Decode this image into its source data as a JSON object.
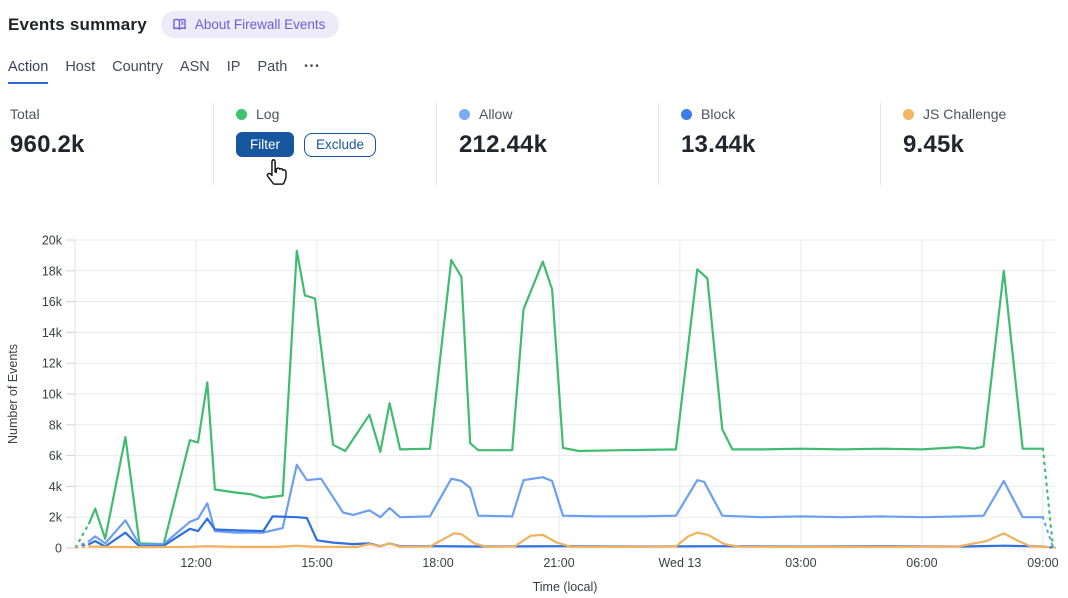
{
  "header": {
    "title": "Events summary",
    "about_badge": {
      "label": "About Firewall Events",
      "icon": "book-icon",
      "text_color": "#6b5ed8",
      "bg_color": "#edebf9"
    }
  },
  "tabs": {
    "items": [
      {
        "label": "Action",
        "active": true
      },
      {
        "label": "Host",
        "active": false
      },
      {
        "label": "Country",
        "active": false
      },
      {
        "label": "ASN",
        "active": false
      },
      {
        "label": "IP",
        "active": false
      },
      {
        "label": "Path",
        "active": false
      }
    ],
    "more": "•••",
    "active_underline_color": "#2e65d9"
  },
  "stats": {
    "total": {
      "label": "Total",
      "value": "960.2k"
    },
    "log": {
      "label": "Log",
      "color": "#3ec46f",
      "filter_label": "Filter",
      "exclude_label": "Exclude",
      "button_color": "#16569e"
    },
    "allow": {
      "label": "Allow",
      "value": "212.44k",
      "color": "#7aabf5"
    },
    "block": {
      "label": "Block",
      "value": "13.44k",
      "color": "#3b7de8"
    },
    "js_challenge": {
      "label": "JS Challenge",
      "value": "9.45k",
      "color": "#f2b661"
    }
  },
  "chart_data": {
    "type": "line",
    "title": "",
    "xlabel": "Time (local)",
    "ylabel": "Number of Events",
    "grid": true,
    "legend_position": "top-cards",
    "y_axis": {
      "max": 20,
      "unit": "k",
      "ticks": [
        {
          "v": 0,
          "label": "0"
        },
        {
          "v": 2,
          "label": "2k"
        },
        {
          "v": 4,
          "label": "4k"
        },
        {
          "v": 6,
          "label": "6k"
        },
        {
          "v": 8,
          "label": "8k"
        },
        {
          "v": 10,
          "label": "10k"
        },
        {
          "v": 12,
          "label": "12k"
        },
        {
          "v": 14,
          "label": "14k"
        },
        {
          "v": 16,
          "label": "16k"
        },
        {
          "v": 18,
          "label": "18k"
        },
        {
          "v": 20,
          "label": "20k"
        }
      ]
    },
    "x_axis": {
      "h_max": 24.3,
      "title": "Time (local)",
      "ticks": [
        {
          "h": 3,
          "label": "12:00"
        },
        {
          "h": 6,
          "label": "15:00"
        },
        {
          "h": 9,
          "label": "18:00"
        },
        {
          "h": 12,
          "label": "21:00"
        },
        {
          "h": 15,
          "label": "Wed 13"
        },
        {
          "h": 18,
          "label": "03:00"
        },
        {
          "h": 21,
          "label": "06:00"
        },
        {
          "h": 24,
          "label": "09:00"
        }
      ]
    },
    "series": [
      {
        "name": "Log",
        "color": "#3fbc70",
        "dashed_head": 2,
        "dashed_tail": 2,
        "units": "k events",
        "points": [
          [
            0.02,
            0.05
          ],
          [
            0.35,
            1.6
          ],
          [
            0.5,
            2.55
          ],
          [
            0.75,
            0.6
          ],
          [
            1.25,
            7.2
          ],
          [
            1.6,
            0.3
          ],
          [
            2.2,
            0.25
          ],
          [
            2.85,
            7.0
          ],
          [
            3.05,
            6.85
          ],
          [
            3.28,
            10.75
          ],
          [
            3.47,
            3.8
          ],
          [
            4.0,
            3.6
          ],
          [
            4.35,
            3.5
          ],
          [
            4.67,
            3.25
          ],
          [
            5.15,
            3.4
          ],
          [
            5.5,
            19.3
          ],
          [
            5.7,
            16.4
          ],
          [
            5.95,
            16.2
          ],
          [
            6.4,
            6.7
          ],
          [
            6.7,
            6.3
          ],
          [
            7.3,
            8.65
          ],
          [
            7.57,
            6.25
          ],
          [
            7.8,
            9.4
          ],
          [
            8.06,
            6.4
          ],
          [
            8.8,
            6.45
          ],
          [
            9.33,
            18.7
          ],
          [
            9.58,
            17.6
          ],
          [
            9.8,
            6.8
          ],
          [
            10.0,
            6.35
          ],
          [
            10.84,
            6.35
          ],
          [
            11.12,
            15.5
          ],
          [
            11.6,
            18.6
          ],
          [
            11.83,
            16.8
          ],
          [
            12.1,
            6.5
          ],
          [
            12.5,
            6.3
          ],
          [
            13.5,
            6.35
          ],
          [
            14.9,
            6.4
          ],
          [
            15.43,
            18.1
          ],
          [
            15.68,
            17.5
          ],
          [
            16.05,
            7.7
          ],
          [
            16.3,
            6.4
          ],
          [
            17.0,
            6.4
          ],
          [
            18.0,
            6.45
          ],
          [
            19.0,
            6.4
          ],
          [
            20.0,
            6.45
          ],
          [
            21.0,
            6.4
          ],
          [
            21.9,
            6.55
          ],
          [
            22.3,
            6.45
          ],
          [
            22.53,
            6.6
          ],
          [
            23.03,
            18.0
          ],
          [
            23.5,
            6.45
          ],
          [
            24.0,
            6.45
          ],
          [
            24.25,
            0.05
          ]
        ]
      },
      {
        "name": "Allow",
        "color": "#6d9ff0",
        "dashed_head": 2,
        "dashed_tail": 2,
        "units": "k events",
        "points": [
          [
            0.02,
            0.05
          ],
          [
            0.35,
            0.45
          ],
          [
            0.5,
            0.75
          ],
          [
            0.75,
            0.3
          ],
          [
            1.25,
            1.8
          ],
          [
            1.6,
            0.2
          ],
          [
            2.2,
            0.25
          ],
          [
            2.85,
            1.7
          ],
          [
            3.05,
            1.9
          ],
          [
            3.28,
            2.9
          ],
          [
            3.47,
            1.1
          ],
          [
            4.0,
            1.0
          ],
          [
            4.67,
            1.0
          ],
          [
            5.15,
            1.3
          ],
          [
            5.5,
            5.4
          ],
          [
            5.75,
            4.4
          ],
          [
            6.1,
            4.5
          ],
          [
            6.4,
            3.3
          ],
          [
            6.65,
            2.3
          ],
          [
            6.9,
            2.15
          ],
          [
            7.3,
            2.45
          ],
          [
            7.57,
            2.0
          ],
          [
            7.8,
            2.6
          ],
          [
            8.06,
            2.0
          ],
          [
            8.8,
            2.05
          ],
          [
            9.33,
            4.5
          ],
          [
            9.58,
            4.35
          ],
          [
            9.8,
            3.9
          ],
          [
            10.0,
            2.1
          ],
          [
            10.84,
            2.05
          ],
          [
            11.12,
            4.4
          ],
          [
            11.6,
            4.6
          ],
          [
            11.83,
            4.35
          ],
          [
            12.1,
            2.1
          ],
          [
            13.0,
            2.05
          ],
          [
            14.0,
            2.05
          ],
          [
            14.9,
            2.1
          ],
          [
            15.43,
            4.4
          ],
          [
            15.6,
            4.3
          ],
          [
            16.05,
            2.1
          ],
          [
            17.0,
            2.0
          ],
          [
            18.0,
            2.05
          ],
          [
            19.0,
            2.0
          ],
          [
            20.0,
            2.05
          ],
          [
            21.0,
            2.0
          ],
          [
            22.0,
            2.05
          ],
          [
            22.53,
            2.1
          ],
          [
            23.03,
            4.35
          ],
          [
            23.5,
            2.0
          ],
          [
            24.0,
            2.0
          ],
          [
            24.25,
            0.05
          ]
        ]
      },
      {
        "name": "Block",
        "color": "#2f70e0",
        "dashed_head": 2,
        "dashed_tail": 2,
        "units": "k events",
        "points": [
          [
            0.02,
            0.03
          ],
          [
            0.35,
            0.25
          ],
          [
            0.5,
            0.45
          ],
          [
            0.75,
            0.1
          ],
          [
            1.25,
            1.0
          ],
          [
            1.6,
            0.1
          ],
          [
            2.2,
            0.15
          ],
          [
            2.85,
            1.25
          ],
          [
            3.05,
            1.1
          ],
          [
            3.28,
            1.9
          ],
          [
            3.47,
            1.2
          ],
          [
            4.0,
            1.15
          ],
          [
            4.67,
            1.1
          ],
          [
            4.9,
            2.05
          ],
          [
            5.5,
            2.0
          ],
          [
            5.75,
            1.95
          ],
          [
            6.0,
            0.5
          ],
          [
            6.4,
            0.35
          ],
          [
            6.9,
            0.25
          ],
          [
            7.3,
            0.3
          ],
          [
            7.57,
            0.12
          ],
          [
            7.8,
            0.3
          ],
          [
            8.06,
            0.12
          ],
          [
            9.0,
            0.12
          ],
          [
            10.0,
            0.1
          ],
          [
            12.0,
            0.12
          ],
          [
            14.0,
            0.1
          ],
          [
            16.0,
            0.12
          ],
          [
            18.0,
            0.1
          ],
          [
            20.0,
            0.12
          ],
          [
            22.0,
            0.1
          ],
          [
            23.03,
            0.15
          ],
          [
            24.0,
            0.1
          ],
          [
            24.25,
            0.02
          ]
        ]
      },
      {
        "name": "JS Challenge",
        "color": "#f0b25e",
        "dashed_head": 2,
        "dashed_tail": 2,
        "units": "k events",
        "points": [
          [
            0.02,
            0.02
          ],
          [
            0.35,
            0.1
          ],
          [
            0.75,
            0.07
          ],
          [
            1.6,
            0.06
          ],
          [
            2.85,
            0.08
          ],
          [
            3.28,
            0.12
          ],
          [
            4.0,
            0.07
          ],
          [
            5.0,
            0.07
          ],
          [
            5.5,
            0.15
          ],
          [
            6.0,
            0.08
          ],
          [
            7.0,
            0.07
          ],
          [
            7.3,
            0.25
          ],
          [
            7.57,
            0.1
          ],
          [
            7.8,
            0.3
          ],
          [
            8.06,
            0.08
          ],
          [
            8.8,
            0.1
          ],
          [
            9.15,
            0.6
          ],
          [
            9.4,
            0.95
          ],
          [
            9.58,
            0.9
          ],
          [
            9.9,
            0.3
          ],
          [
            10.2,
            0.08
          ],
          [
            10.9,
            0.1
          ],
          [
            11.3,
            0.8
          ],
          [
            11.6,
            0.85
          ],
          [
            11.95,
            0.35
          ],
          [
            12.3,
            0.08
          ],
          [
            13.5,
            0.07
          ],
          [
            14.9,
            0.1
          ],
          [
            15.2,
            0.75
          ],
          [
            15.43,
            1.0
          ],
          [
            15.7,
            0.85
          ],
          [
            16.1,
            0.25
          ],
          [
            16.5,
            0.08
          ],
          [
            18.0,
            0.07
          ],
          [
            20.0,
            0.07
          ],
          [
            21.9,
            0.1
          ],
          [
            22.6,
            0.45
          ],
          [
            23.03,
            0.95
          ],
          [
            23.4,
            0.45
          ],
          [
            23.7,
            0.1
          ],
          [
            24.1,
            0.07
          ],
          [
            24.3,
            0.02
          ]
        ]
      }
    ]
  }
}
